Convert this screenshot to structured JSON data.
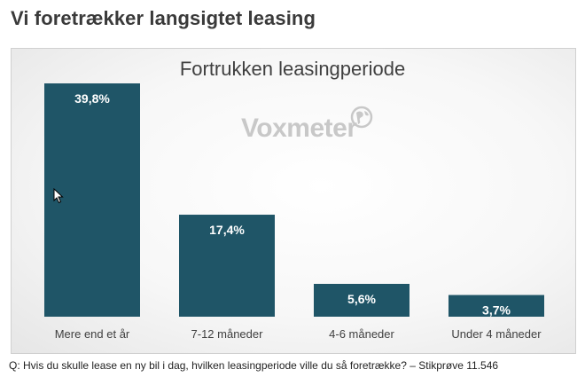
{
  "page": {
    "title": "Vi foretrækker langsigtet leasing",
    "footnote": "Q: Hvis du skulle lease en ny bil i dag, hvilken leasingperiode ville du så foretrække? – Stikprøve 11.546"
  },
  "watermark": {
    "text": "Voxmeter",
    "icon": "globe-icon"
  },
  "colors": {
    "bar": "#1f5567",
    "label": "#ffffff",
    "axis_text": "#404040"
  },
  "chart_data": {
    "type": "bar",
    "title": "Fortrukken leasingperiode",
    "categories": [
      "Mere end et år",
      "7-12 måneder",
      "4-6 måneder",
      "Under 4 måneder"
    ],
    "values": [
      39.8,
      17.4,
      5.6,
      3.7
    ],
    "data_labels": [
      "39,8%",
      "17,4%",
      "5,6%",
      "3,7%"
    ],
    "unit": "%",
    "xlabel": "",
    "ylabel": "",
    "ylim": [
      0,
      40
    ],
    "grid": false,
    "legend": "none"
  }
}
